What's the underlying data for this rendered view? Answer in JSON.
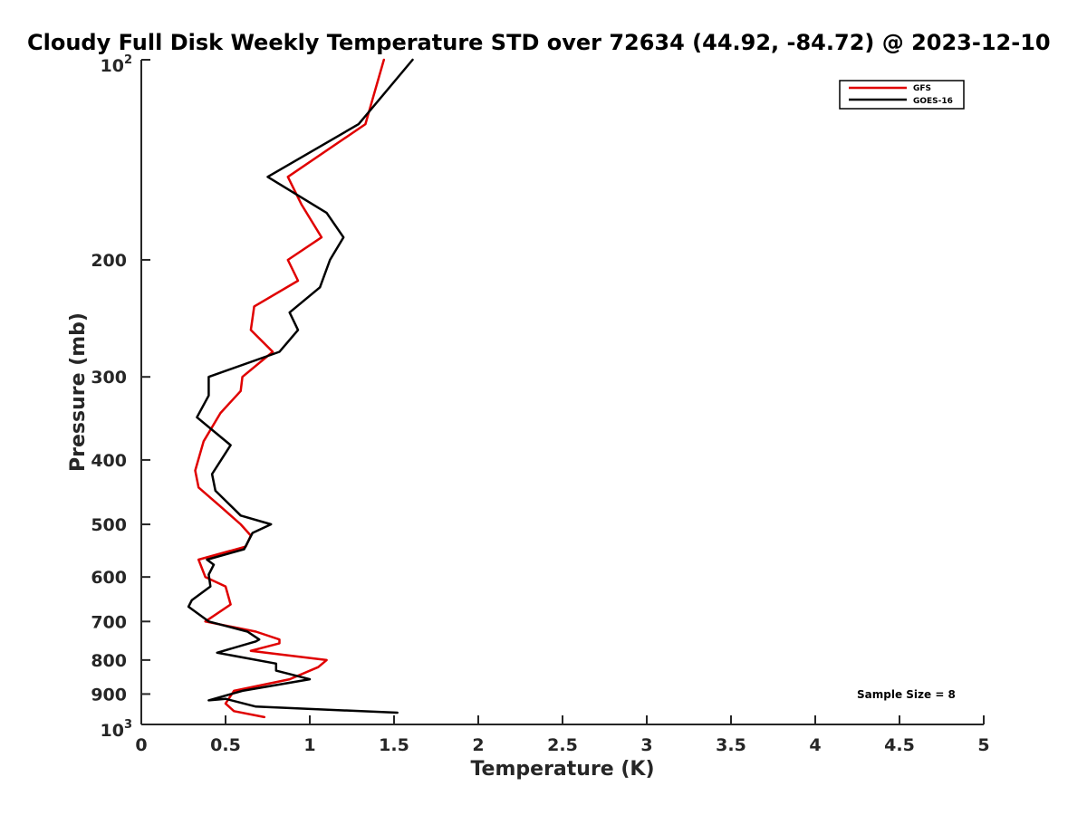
{
  "chart_data": {
    "type": "line",
    "title": "Cloudy Full Disk Weekly Temperature STD over 72634 (44.92, -84.72) @ 2023-12-10",
    "xlabel": "Temperature (K)",
    "ylabel": "Pressure (mb)",
    "xlim": [
      0,
      5
    ],
    "ylim": [
      100,
      1000
    ],
    "y_scale": "log",
    "y_reversed": true,
    "x_ticks": [
      {
        "value": 0,
        "label": "0"
      },
      {
        "value": 0.5,
        "label": "0.5"
      },
      {
        "value": 1,
        "label": "1"
      },
      {
        "value": 1.5,
        "label": "1.5"
      },
      {
        "value": 2,
        "label": "2"
      },
      {
        "value": 2.5,
        "label": "2.5"
      },
      {
        "value": 3,
        "label": "3"
      },
      {
        "value": 3.5,
        "label": "3.5"
      },
      {
        "value": 4,
        "label": "4"
      },
      {
        "value": 4.5,
        "label": "4.5"
      },
      {
        "value": 5,
        "label": "5"
      }
    ],
    "y_ticks": [
      {
        "value": 100,
        "label": "10",
        "sup": "2"
      },
      {
        "value": 200,
        "label": "200"
      },
      {
        "value": 300,
        "label": "300"
      },
      {
        "value": 400,
        "label": "400"
      },
      {
        "value": 500,
        "label": "500"
      },
      {
        "value": 600,
        "label": "600"
      },
      {
        "value": 700,
        "label": "700"
      },
      {
        "value": 800,
        "label": "800"
      },
      {
        "value": 900,
        "label": "900"
      },
      {
        "value": 1000,
        "label": "10",
        "sup": "3"
      }
    ],
    "grid": false,
    "legend_position": "top-right",
    "series": [
      {
        "name": "GFS",
        "color": "#e00000",
        "points": [
          {
            "x": 1.44,
            "y": 100
          },
          {
            "x": 1.33,
            "y": 125
          },
          {
            "x": 0.87,
            "y": 150
          },
          {
            "x": 0.95,
            "y": 165
          },
          {
            "x": 1.07,
            "y": 185
          },
          {
            "x": 0.87,
            "y": 200
          },
          {
            "x": 0.93,
            "y": 215
          },
          {
            "x": 0.67,
            "y": 235
          },
          {
            "x": 0.65,
            "y": 255
          },
          {
            "x": 0.78,
            "y": 275
          },
          {
            "x": 0.6,
            "y": 300
          },
          {
            "x": 0.59,
            "y": 315
          },
          {
            "x": 0.47,
            "y": 340
          },
          {
            "x": 0.37,
            "y": 375
          },
          {
            "x": 0.32,
            "y": 415
          },
          {
            "x": 0.34,
            "y": 440
          },
          {
            "x": 0.47,
            "y": 470
          },
          {
            "x": 0.59,
            "y": 500
          },
          {
            "x": 0.65,
            "y": 520
          },
          {
            "x": 0.62,
            "y": 540
          },
          {
            "x": 0.34,
            "y": 565
          },
          {
            "x": 0.38,
            "y": 600
          },
          {
            "x": 0.5,
            "y": 620
          },
          {
            "x": 0.53,
            "y": 660
          },
          {
            "x": 0.38,
            "y": 700
          },
          {
            "x": 0.68,
            "y": 725
          },
          {
            "x": 0.82,
            "y": 745
          },
          {
            "x": 0.82,
            "y": 755
          },
          {
            "x": 0.65,
            "y": 775
          },
          {
            "x": 1.1,
            "y": 800
          },
          {
            "x": 1.05,
            "y": 820
          },
          {
            "x": 0.88,
            "y": 855
          },
          {
            "x": 0.55,
            "y": 890
          },
          {
            "x": 0.5,
            "y": 930
          },
          {
            "x": 0.55,
            "y": 955
          },
          {
            "x": 0.73,
            "y": 975
          }
        ]
      },
      {
        "name": "GOES-16",
        "color": "#000000",
        "points": [
          {
            "x": 1.61,
            "y": 100
          },
          {
            "x": 1.29,
            "y": 125
          },
          {
            "x": 0.75,
            "y": 150
          },
          {
            "x": 1.1,
            "y": 170
          },
          {
            "x": 1.2,
            "y": 185
          },
          {
            "x": 1.12,
            "y": 200
          },
          {
            "x": 1.06,
            "y": 220
          },
          {
            "x": 0.88,
            "y": 240
          },
          {
            "x": 0.93,
            "y": 255
          },
          {
            "x": 0.82,
            "y": 275
          },
          {
            "x": 0.4,
            "y": 300
          },
          {
            "x": 0.4,
            "y": 320
          },
          {
            "x": 0.33,
            "y": 345
          },
          {
            "x": 0.53,
            "y": 380
          },
          {
            "x": 0.42,
            "y": 420
          },
          {
            "x": 0.44,
            "y": 445
          },
          {
            "x": 0.59,
            "y": 485
          },
          {
            "x": 0.77,
            "y": 500
          },
          {
            "x": 0.66,
            "y": 515
          },
          {
            "x": 0.61,
            "y": 545
          },
          {
            "x": 0.39,
            "y": 565
          },
          {
            "x": 0.43,
            "y": 575
          },
          {
            "x": 0.4,
            "y": 595
          },
          {
            "x": 0.41,
            "y": 620
          },
          {
            "x": 0.3,
            "y": 650
          },
          {
            "x": 0.28,
            "y": 665
          },
          {
            "x": 0.4,
            "y": 700
          },
          {
            "x": 0.63,
            "y": 725
          },
          {
            "x": 0.7,
            "y": 745
          },
          {
            "x": 0.68,
            "y": 750
          },
          {
            "x": 0.45,
            "y": 780
          },
          {
            "x": 0.8,
            "y": 810
          },
          {
            "x": 0.8,
            "y": 830
          },
          {
            "x": 1.0,
            "y": 855
          },
          {
            "x": 0.6,
            "y": 890
          },
          {
            "x": 0.4,
            "y": 920
          },
          {
            "x": 0.5,
            "y": 915
          },
          {
            "x": 0.68,
            "y": 940
          },
          {
            "x": 1.52,
            "y": 960
          }
        ]
      }
    ],
    "annotation": "Sample Size = 8"
  }
}
